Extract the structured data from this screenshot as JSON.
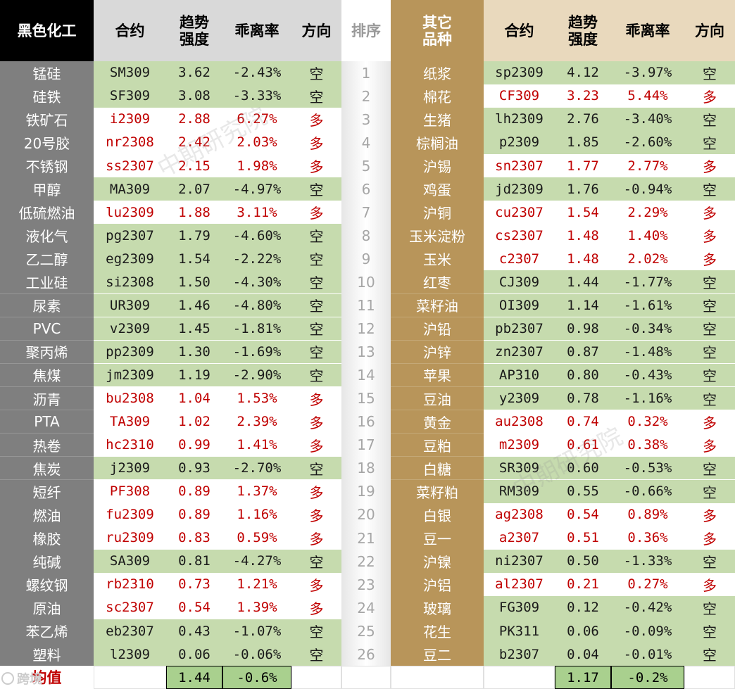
{
  "colors": {
    "left_title_bg": "#000000",
    "header_bg": "#d9d9d9",
    "mid_bg": "#ececec",
    "gold": "#b8955a",
    "gold_light": "#e9d9bd",
    "grey": "#7f7f7f",
    "short_bg": "#c6dbae",
    "long_bg": "#ffffff",
    "short_text": "#1a1a1a",
    "long_text": "#c00000",
    "avg_bg": "#a9d08e"
  },
  "headers": {
    "left_group": "黑色化工",
    "contract": "合约",
    "strength": "趋势\n强度",
    "deviation": "乖离率",
    "direction": "方向",
    "rank": "排序",
    "right_group": "其它\n品种"
  },
  "rank_numbers": [
    "1",
    "2",
    "3",
    "4",
    "5",
    "6",
    "7",
    "8",
    "9",
    "10",
    "11",
    "12",
    "13",
    "14",
    "15",
    "16",
    "17",
    "18",
    "19",
    "20",
    "21",
    "22",
    "23",
    "24",
    "25",
    "26"
  ],
  "left_rows": [
    {
      "name": "锰硅",
      "contract": "SM309",
      "strength": "3.62",
      "deviation": "-2.43%",
      "direction": "空"
    },
    {
      "name": "硅铁",
      "contract": "SF309",
      "strength": "3.08",
      "deviation": "-3.33%",
      "direction": "空"
    },
    {
      "name": "铁矿石",
      "contract": "i2309",
      "strength": "2.88",
      "deviation": "6.27%",
      "direction": "多"
    },
    {
      "name": "20号胶",
      "contract": "nr2308",
      "strength": "2.42",
      "deviation": "2.03%",
      "direction": "多"
    },
    {
      "name": "不锈钢",
      "contract": "ss2307",
      "strength": "2.15",
      "deviation": "1.98%",
      "direction": "多"
    },
    {
      "name": "甲醇",
      "contract": "MA309",
      "strength": "2.07",
      "deviation": "-4.97%",
      "direction": "空"
    },
    {
      "name": "低硫燃油",
      "contract": "lu2309",
      "strength": "1.88",
      "deviation": "3.11%",
      "direction": "多"
    },
    {
      "name": "液化气",
      "contract": "pg2307",
      "strength": "1.79",
      "deviation": "-4.60%",
      "direction": "空"
    },
    {
      "name": "乙二醇",
      "contract": "eg2309",
      "strength": "1.54",
      "deviation": "-2.22%",
      "direction": "空"
    },
    {
      "name": "工业硅",
      "contract": "si2308",
      "strength": "1.50",
      "deviation": "-4.30%",
      "direction": "空"
    },
    {
      "name": "尿素",
      "contract": "UR309",
      "strength": "1.46",
      "deviation": "-4.80%",
      "direction": "空"
    },
    {
      "name": "PVC",
      "contract": "v2309",
      "strength": "1.45",
      "deviation": "-1.81%",
      "direction": "空"
    },
    {
      "name": "聚丙烯",
      "contract": "pp2309",
      "strength": "1.30",
      "deviation": "-1.69%",
      "direction": "空"
    },
    {
      "name": "焦煤",
      "contract": "jm2309",
      "strength": "1.19",
      "deviation": "-2.90%",
      "direction": "空"
    },
    {
      "name": "沥青",
      "contract": "bu2308",
      "strength": "1.04",
      "deviation": "1.53%",
      "direction": "多"
    },
    {
      "name": "PTA",
      "contract": "TA309",
      "strength": "1.02",
      "deviation": "2.39%",
      "direction": "多"
    },
    {
      "name": "热卷",
      "contract": "hc2310",
      "strength": "0.99",
      "deviation": "1.41%",
      "direction": "多"
    },
    {
      "name": "焦炭",
      "contract": "j2309",
      "strength": "0.93",
      "deviation": "-2.70%",
      "direction": "空"
    },
    {
      "name": "短纤",
      "contract": "PF308",
      "strength": "0.89",
      "deviation": "1.37%",
      "direction": "多"
    },
    {
      "name": "燃油",
      "contract": "fu2309",
      "strength": "0.89",
      "deviation": "1.16%",
      "direction": "多"
    },
    {
      "name": "橡胶",
      "contract": "ru2309",
      "strength": "0.83",
      "deviation": "0.59%",
      "direction": "多"
    },
    {
      "name": "纯碱",
      "contract": "SA309",
      "strength": "0.81",
      "deviation": "-4.27%",
      "direction": "空"
    },
    {
      "name": "螺纹钢",
      "contract": "rb2310",
      "strength": "0.73",
      "deviation": "1.21%",
      "direction": "多"
    },
    {
      "name": "原油",
      "contract": "sc2307",
      "strength": "0.54",
      "deviation": "1.39%",
      "direction": "多"
    },
    {
      "name": "苯乙烯",
      "contract": "eb2307",
      "strength": "0.43",
      "deviation": "-1.07%",
      "direction": "空"
    },
    {
      "name": "塑料",
      "contract": "l2309",
      "strength": "0.06",
      "deviation": "-0.06%",
      "direction": "空"
    }
  ],
  "right_rows": [
    {
      "name": "纸浆",
      "contract": "sp2309",
      "strength": "4.12",
      "deviation": "-3.97%",
      "direction": "空"
    },
    {
      "name": "棉花",
      "contract": "CF309",
      "strength": "3.23",
      "deviation": "5.44%",
      "direction": "多"
    },
    {
      "name": "生猪",
      "contract": "lh2309",
      "strength": "2.76",
      "deviation": "-3.40%",
      "direction": "空"
    },
    {
      "name": "棕榈油",
      "contract": "p2309",
      "strength": "1.85",
      "deviation": "-2.60%",
      "direction": "空"
    },
    {
      "name": "沪锡",
      "contract": "sn2307",
      "strength": "1.77",
      "deviation": "2.77%",
      "direction": "多"
    },
    {
      "name": "鸡蛋",
      "contract": "jd2309",
      "strength": "1.76",
      "deviation": "-0.94%",
      "direction": "空"
    },
    {
      "name": "沪铜",
      "contract": "cu2307",
      "strength": "1.54",
      "deviation": "2.29%",
      "direction": "多"
    },
    {
      "name": "玉米淀粉",
      "contract": "cs2307",
      "strength": "1.48",
      "deviation": "1.40%",
      "direction": "多"
    },
    {
      "name": "玉米",
      "contract": "c2307",
      "strength": "1.48",
      "deviation": "2.02%",
      "direction": "多"
    },
    {
      "name": "红枣",
      "contract": "CJ309",
      "strength": "1.44",
      "deviation": "-1.77%",
      "direction": "空"
    },
    {
      "name": "菜籽油",
      "contract": "OI309",
      "strength": "1.14",
      "deviation": "-1.61%",
      "direction": "空"
    },
    {
      "name": "沪铅",
      "contract": "pb2307",
      "strength": "0.98",
      "deviation": "-0.34%",
      "direction": "空"
    },
    {
      "name": "沪锌",
      "contract": "zn2307",
      "strength": "0.87",
      "deviation": "-1.48%",
      "direction": "空"
    },
    {
      "name": "苹果",
      "contract": "AP310",
      "strength": "0.80",
      "deviation": "-0.43%",
      "direction": "空"
    },
    {
      "name": "豆油",
      "contract": "y2309",
      "strength": "0.78",
      "deviation": "-1.16%",
      "direction": "空"
    },
    {
      "name": "黄金",
      "contract": "au2308",
      "strength": "0.74",
      "deviation": "0.32%",
      "direction": "多"
    },
    {
      "name": "豆粕",
      "contract": "m2309",
      "strength": "0.61",
      "deviation": "0.38%",
      "direction": "多"
    },
    {
      "name": "白糖",
      "contract": "SR309",
      "strength": "0.60",
      "deviation": "-0.53%",
      "direction": "空"
    },
    {
      "name": "菜籽粕",
      "contract": "RM309",
      "strength": "0.55",
      "deviation": "-0.66%",
      "direction": "空"
    },
    {
      "name": "白银",
      "contract": "ag2308",
      "strength": "0.54",
      "deviation": "0.89%",
      "direction": "多"
    },
    {
      "name": "豆一",
      "contract": "a2307",
      "strength": "0.51",
      "deviation": "0.36%",
      "direction": "多"
    },
    {
      "name": "沪镍",
      "contract": "ni2307",
      "strength": "0.50",
      "deviation": "-1.33%",
      "direction": "空"
    },
    {
      "name": "沪铝",
      "contract": "al2307",
      "strength": "0.21",
      "deviation": "0.27%",
      "direction": "多"
    },
    {
      "name": "玻璃",
      "contract": "FG309",
      "strength": "0.12",
      "deviation": "-0.42%",
      "direction": "空"
    },
    {
      "name": "花生",
      "contract": "PK311",
      "strength": "0.06",
      "deviation": "-0.09%",
      "direction": "空"
    },
    {
      "name": "豆二",
      "contract": "b2307",
      "strength": "0.04",
      "deviation": "-0.01%",
      "direction": "空"
    }
  ],
  "averages": {
    "label": "均值",
    "left_strength": "1.44",
    "left_deviation": "-0.6%",
    "right_strength": "1.17",
    "right_deviation": "-0.2%"
  },
  "watermark": {
    "left": "中期研究院",
    "right": "中期研究院"
  },
  "logo_text": "跨境"
}
